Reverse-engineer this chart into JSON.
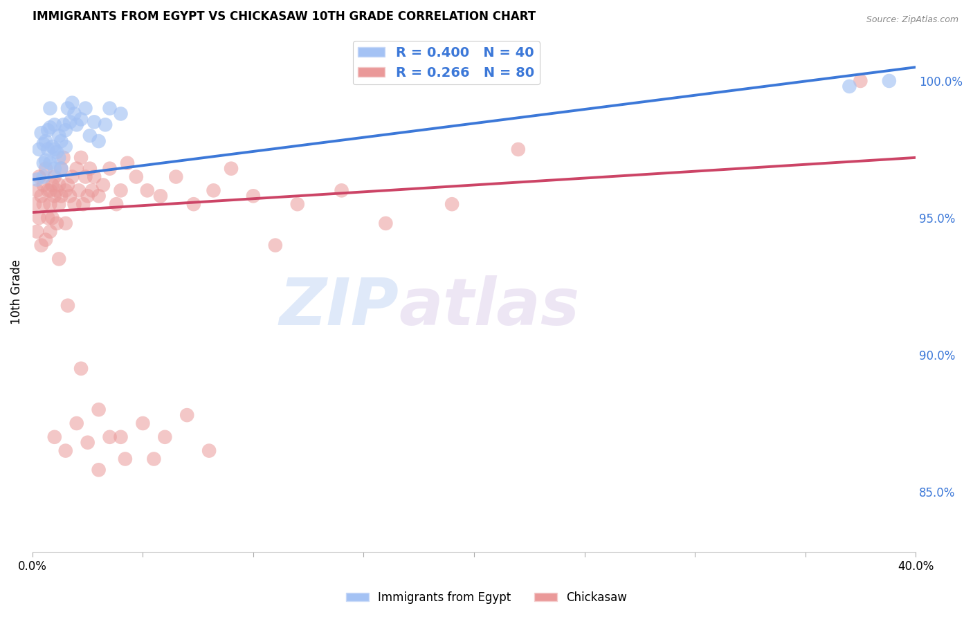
{
  "title": "IMMIGRANTS FROM EGYPT VS CHICKASAW 10TH GRADE CORRELATION CHART",
  "source": "Source: ZipAtlas.com",
  "ylabel": "10th Grade",
  "ylabel_right_ticks": [
    "100.0%",
    "95.0%",
    "90.0%",
    "85.0%"
  ],
  "ylabel_right_vals": [
    1.0,
    0.95,
    0.9,
    0.85
  ],
  "xmin": 0.0,
  "xmax": 0.4,
  "ymin": 0.828,
  "ymax": 1.018,
  "legend_r1": "R = 0.400",
  "legend_n1": "N = 40",
  "legend_r2": "R = 0.266",
  "legend_n2": "N = 80",
  "watermark_zip": "ZIP",
  "watermark_atlas": "atlas",
  "blue_color": "#a4c2f4",
  "pink_color": "#ea9999",
  "blue_line_color": "#3c78d8",
  "pink_line_color": "#cc4466",
  "legend_text_color": "#3c78d8",
  "right_axis_color": "#3c78d8",
  "blue_scatter_x": [
    0.002,
    0.003,
    0.004,
    0.005,
    0.005,
    0.005,
    0.006,
    0.006,
    0.007,
    0.007,
    0.008,
    0.008,
    0.008,
    0.009,
    0.01,
    0.01,
    0.01,
    0.011,
    0.012,
    0.012,
    0.013,
    0.013,
    0.014,
    0.015,
    0.015,
    0.016,
    0.017,
    0.018,
    0.019,
    0.02,
    0.022,
    0.024,
    0.026,
    0.028,
    0.03,
    0.033,
    0.035,
    0.04,
    0.37,
    0.388
  ],
  "blue_scatter_y": [
    0.964,
    0.975,
    0.981,
    0.977,
    0.97,
    0.965,
    0.978,
    0.971,
    0.982,
    0.975,
    0.99,
    0.983,
    0.97,
    0.976,
    0.984,
    0.975,
    0.968,
    0.974,
    0.98,
    0.972,
    0.978,
    0.968,
    0.984,
    0.982,
    0.976,
    0.99,
    0.985,
    0.992,
    0.988,
    0.984,
    0.986,
    0.99,
    0.98,
    0.985,
    0.978,
    0.984,
    0.99,
    0.988,
    0.998,
    1.0
  ],
  "pink_scatter_x": [
    0.001,
    0.002,
    0.002,
    0.003,
    0.003,
    0.004,
    0.004,
    0.005,
    0.005,
    0.006,
    0.006,
    0.007,
    0.007,
    0.008,
    0.008,
    0.009,
    0.009,
    0.01,
    0.01,
    0.011,
    0.011,
    0.012,
    0.012,
    0.013,
    0.013,
    0.014,
    0.015,
    0.015,
    0.016,
    0.017,
    0.018,
    0.019,
    0.02,
    0.021,
    0.022,
    0.023,
    0.024,
    0.025,
    0.026,
    0.027,
    0.028,
    0.03,
    0.032,
    0.035,
    0.038,
    0.04,
    0.043,
    0.047,
    0.052,
    0.058,
    0.065,
    0.073,
    0.082,
    0.09,
    0.1,
    0.11,
    0.12,
    0.14,
    0.16,
    0.19,
    0.22,
    0.01,
    0.015,
    0.02,
    0.025,
    0.03,
    0.035,
    0.042,
    0.05,
    0.06,
    0.07,
    0.08,
    0.008,
    0.012,
    0.016,
    0.022,
    0.03,
    0.04,
    0.055,
    0.375
  ],
  "pink_scatter_y": [
    0.955,
    0.96,
    0.945,
    0.965,
    0.95,
    0.958,
    0.94,
    0.962,
    0.955,
    0.968,
    0.942,
    0.95,
    0.96,
    0.955,
    0.945,
    0.962,
    0.95,
    0.958,
    0.965,
    0.96,
    0.948,
    0.955,
    0.962,
    0.968,
    0.958,
    0.972,
    0.96,
    0.948,
    0.962,
    0.958,
    0.965,
    0.955,
    0.968,
    0.96,
    0.972,
    0.955,
    0.965,
    0.958,
    0.968,
    0.96,
    0.965,
    0.958,
    0.962,
    0.968,
    0.955,
    0.96,
    0.97,
    0.965,
    0.96,
    0.958,
    0.965,
    0.955,
    0.96,
    0.968,
    0.958,
    0.94,
    0.955,
    0.96,
    0.948,
    0.955,
    0.975,
    0.87,
    0.865,
    0.875,
    0.868,
    0.858,
    0.87,
    0.862,
    0.875,
    0.87,
    0.878,
    0.865,
    0.96,
    0.935,
    0.918,
    0.895,
    0.88,
    0.87,
    0.862,
    1.0
  ],
  "blue_trendline_x": [
    0.0,
    0.4
  ],
  "blue_trendline_y": [
    0.964,
    1.005
  ],
  "pink_trendline_x": [
    0.0,
    0.4
  ],
  "pink_trendline_y": [
    0.952,
    0.972
  ]
}
